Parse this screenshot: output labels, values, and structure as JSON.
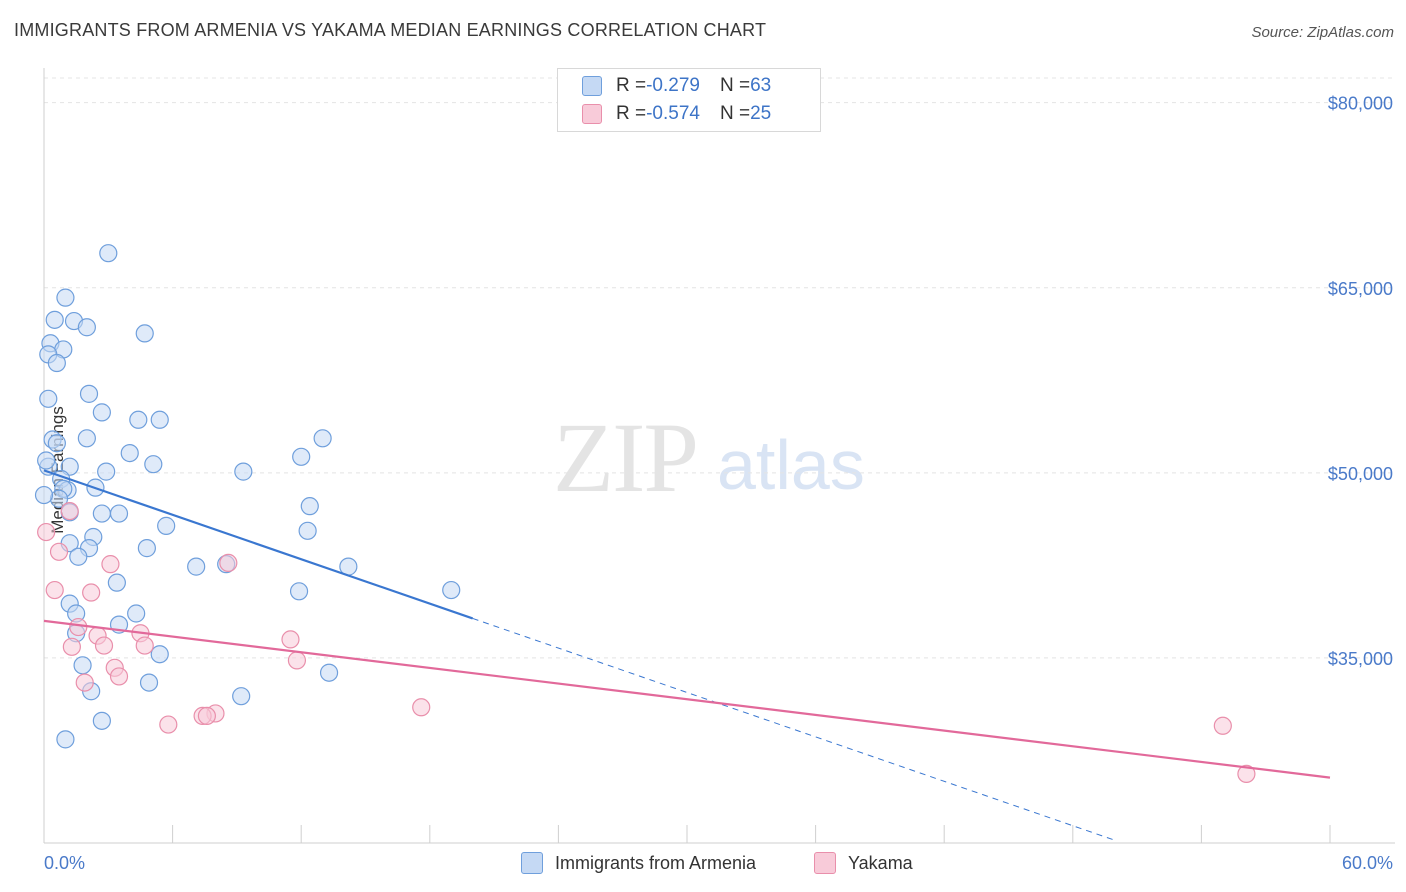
{
  "title": "IMMIGRANTS FROM ARMENIA VS YAKAMA MEDIAN EARNINGS CORRELATION CHART",
  "source": "Source: ZipAtlas.com",
  "watermark": {
    "zip": "ZIP",
    "atlas": "atlas"
  },
  "legend": {
    "rows": [
      {
        "r_label": "R = ",
        "r_value": "-0.279",
        "n_label": "N = ",
        "n_value": "63"
      },
      {
        "r_label": "R = ",
        "r_value": "-0.574",
        "n_label": "N = ",
        "n_value": "25"
      }
    ]
  },
  "bottom_legend": {
    "series1": "Immigrants from Armenia",
    "series2": "Yakama"
  },
  "colors": {
    "series1_fill": "#c5d9f4",
    "series1_stroke": "#6f9fdc",
    "series1_line": "#3a77d0",
    "series2_fill": "#f8cbd9",
    "series2_stroke": "#e98fab",
    "series2_line": "#e2699a",
    "tick": "#4a7ac9"
  },
  "chart_data": {
    "type": "scatter",
    "xlabel": "",
    "ylabel": "Median Earnings",
    "xlim": [
      0,
      60
    ],
    "ylim": [
      20000,
      82000
    ],
    "x_tick_labels": [
      "0.0%",
      "60.0%"
    ],
    "y_ticks": [
      35000,
      50000,
      65000,
      80000
    ],
    "y_tick_labels": [
      "$35,000",
      "$50,000",
      "$65,000",
      "$80,000"
    ],
    "series": [
      {
        "name": "Immigrants from Armenia",
        "points": [
          [
            3.0,
            67800
          ],
          [
            1.0,
            64200
          ],
          [
            0.5,
            62400
          ],
          [
            1.4,
            62300
          ],
          [
            2.0,
            61800
          ],
          [
            4.7,
            61300
          ],
          [
            0.3,
            60500
          ],
          [
            0.9,
            60000
          ],
          [
            0.2,
            59600
          ],
          [
            0.6,
            58900
          ],
          [
            2.1,
            56400
          ],
          [
            0.2,
            56000
          ],
          [
            2.7,
            54900
          ],
          [
            4.4,
            54300
          ],
          [
            5.4,
            54300
          ],
          [
            0.4,
            52700
          ],
          [
            2.0,
            52800
          ],
          [
            0.6,
            52400
          ],
          [
            13.0,
            52800
          ],
          [
            4.0,
            51600
          ],
          [
            12.0,
            51300
          ],
          [
            5.1,
            50700
          ],
          [
            0.2,
            50500
          ],
          [
            1.2,
            50500
          ],
          [
            2.9,
            50100
          ],
          [
            9.3,
            50100
          ],
          [
            0.8,
            49500
          ],
          [
            1.1,
            48600
          ],
          [
            0.9,
            48700
          ],
          [
            2.4,
            48800
          ],
          [
            0.7,
            47900
          ],
          [
            12.4,
            47300
          ],
          [
            1.2,
            46800
          ],
          [
            2.7,
            46700
          ],
          [
            3.5,
            46700
          ],
          [
            5.7,
            45700
          ],
          [
            12.3,
            45300
          ],
          [
            2.3,
            44800
          ],
          [
            1.2,
            44300
          ],
          [
            2.1,
            43900
          ],
          [
            4.8,
            43900
          ],
          [
            1.6,
            43200
          ],
          [
            7.1,
            42400
          ],
          [
            8.5,
            42600
          ],
          [
            14.2,
            42400
          ],
          [
            3.4,
            41100
          ],
          [
            11.9,
            40400
          ],
          [
            19.0,
            40500
          ],
          [
            1.2,
            39400
          ],
          [
            1.5,
            38600
          ],
          [
            4.3,
            38600
          ],
          [
            3.5,
            37700
          ],
          [
            1.5,
            37000
          ],
          [
            5.4,
            35300
          ],
          [
            1.8,
            34400
          ],
          [
            13.3,
            33800
          ],
          [
            4.9,
            33000
          ],
          [
            2.2,
            32300
          ],
          [
            9.2,
            31900
          ],
          [
            2.7,
            29900
          ],
          [
            1.0,
            28400
          ],
          [
            0.0,
            48200
          ],
          [
            0.1,
            51000
          ]
        ]
      },
      {
        "name": "Yakama",
        "points": [
          [
            0.1,
            45200
          ],
          [
            1.2,
            46900
          ],
          [
            0.7,
            43600
          ],
          [
            3.1,
            42600
          ],
          [
            8.6,
            42700
          ],
          [
            0.5,
            40500
          ],
          [
            2.2,
            40300
          ],
          [
            1.6,
            37500
          ],
          [
            2.5,
            36800
          ],
          [
            4.5,
            37000
          ],
          [
            11.5,
            36500
          ],
          [
            1.3,
            35900
          ],
          [
            2.8,
            36000
          ],
          [
            4.7,
            36000
          ],
          [
            11.8,
            34800
          ],
          [
            3.3,
            34200
          ],
          [
            3.5,
            33500
          ],
          [
            1.9,
            33000
          ],
          [
            8.0,
            30500
          ],
          [
            7.4,
            30300
          ],
          [
            7.6,
            30300
          ],
          [
            5.8,
            29600
          ],
          [
            17.6,
            31000
          ],
          [
            55.0,
            29500
          ],
          [
            56.1,
            25600
          ]
        ]
      }
    ],
    "trend_lines": [
      {
        "series": "Immigrants from Armenia",
        "x": [
          0,
          20
        ],
        "y": [
          50200,
          38200
        ],
        "dashed_extension": [
          20,
          50
        ]
      },
      {
        "series": "Yakama",
        "x": [
          0,
          60
        ],
        "y": [
          38000,
          25300
        ]
      }
    ]
  }
}
